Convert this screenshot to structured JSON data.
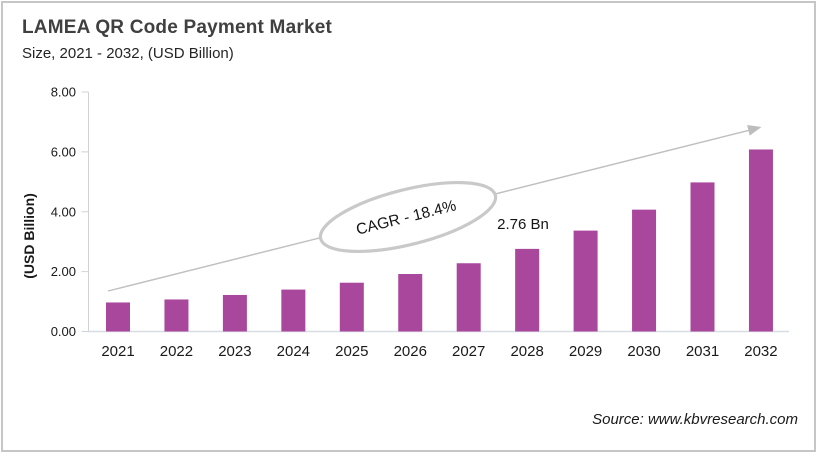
{
  "header": {
    "title": "LAMEA QR Code Payment Market",
    "subtitle": "Size, 2021 - 2032, (USD Billion)"
  },
  "chart_data": {
    "type": "bar",
    "title": "LAMEA QR Code Payment Market Size, 2021 - 2032, (USD Billion)",
    "categories": [
      "2021",
      "2022",
      "2023",
      "2024",
      "2025",
      "2026",
      "2027",
      "2028",
      "2029",
      "2030",
      "2031",
      "2032"
    ],
    "values": [
      0.97,
      1.07,
      1.22,
      1.4,
      1.63,
      1.92,
      2.28,
      2.76,
      3.37,
      4.07,
      4.98,
      6.08
    ],
    "unit": "USD Billion",
    "xlabel": "",
    "ylabel": "(USD Billion)",
    "ylim": [
      0,
      8
    ],
    "y_ticks": {
      "values": [
        0,
        2,
        4,
        6,
        8
      ],
      "labels": [
        "0.00",
        "2.00",
        "4.00",
        "6.00",
        "8.00"
      ]
    },
    "grid": false,
    "legend": false,
    "bar_color": "#a9479c",
    "annotations": {
      "cagr_label": "CAGR - 18.4%",
      "value_label": {
        "text": "2.76 Bn",
        "category": "2028",
        "value": 2.76
      },
      "trend_arrow": true
    }
  },
  "footer": {
    "source": "Source: www.kbvresearch.com"
  }
}
